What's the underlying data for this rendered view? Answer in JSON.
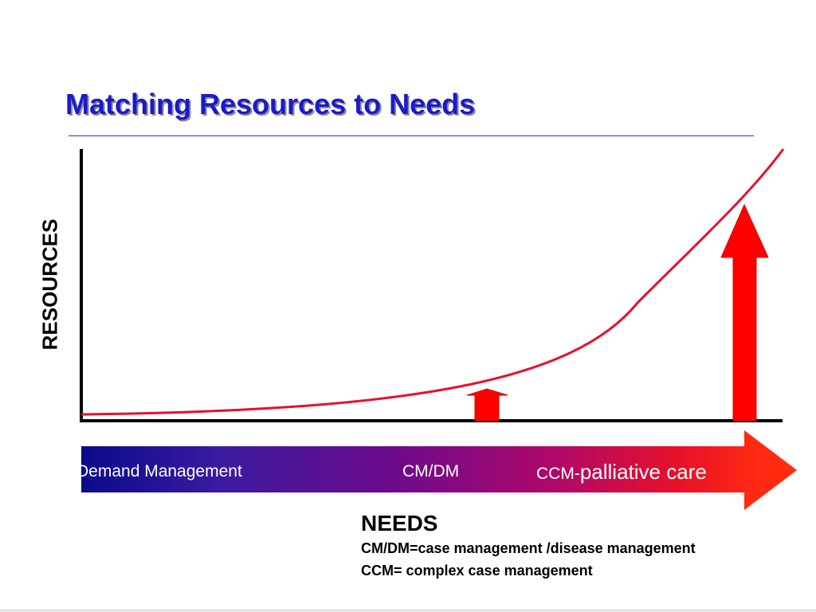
{
  "slide": {
    "title": "Matching Resources to Needs",
    "y_axis_label": "RESOURCES",
    "needs_band": {
      "demand_label": "Demand Management",
      "cmdm_label": "CM/DM",
      "ccm_prefix": "CCM-",
      "ccm_suffix": "palliative care"
    },
    "needs_title": "NEEDS",
    "legend": {
      "line1": "CM/DM=case management /disease management",
      "line2": "CCM= complex case management"
    }
  },
  "colors": {
    "title": "#1a1acc",
    "curve": "#e8102a",
    "arrow": "#ff0000",
    "axis": "#000000",
    "band_start": "#0a0a8c",
    "band_end": "#ff2a10"
  }
}
